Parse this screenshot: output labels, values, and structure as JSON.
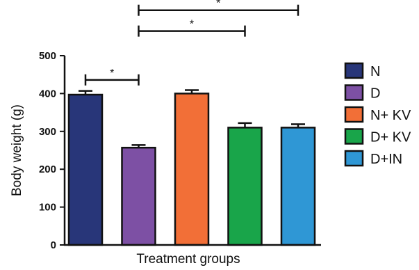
{
  "chart_data": {
    "type": "bar",
    "title": "",
    "xlabel": "Treatment groups",
    "ylabel": "Body weight (g)",
    "ylim": [
      0,
      500
    ],
    "yticks": [
      "0",
      "100",
      "200",
      "300",
      "400",
      "500"
    ],
    "categories": [
      "N",
      "D",
      "N+ KV",
      "D+ KV",
      "D+IN"
    ],
    "values": [
      397,
      257,
      400,
      310,
      310
    ],
    "errors": [
      10,
      7,
      9,
      12,
      9
    ],
    "colors": [
      "#283679",
      "#7d50a4",
      "#f26f37",
      "#19a54a",
      "#2f97d5"
    ],
    "legend": {
      "position": "right",
      "entries": [
        "N",
        "D",
        "N+ KV",
        "D+ KV",
        "D+IN"
      ]
    },
    "significance": [
      {
        "from": 0,
        "to": 1,
        "label": "*",
        "level": 436
      },
      {
        "from": 1,
        "to": 3,
        "label": "*",
        "level": 565
      },
      {
        "from": 1,
        "to": 4,
        "label": "*",
        "level": 620
      }
    ],
    "grid": false
  }
}
